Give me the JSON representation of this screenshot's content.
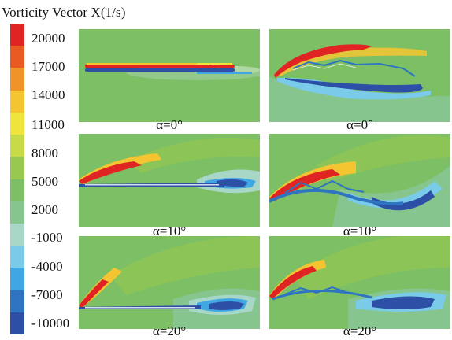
{
  "title": "Vorticity Vector X(1/s)",
  "colorbar": {
    "bands": [
      "#e02424",
      "#e85a22",
      "#f0942a",
      "#f4c531",
      "#efe43c",
      "#c6db47",
      "#98c84f",
      "#7cbf64",
      "#86c58e",
      "#a8d7c8",
      "#79cbe9",
      "#40a7e3",
      "#2f74c2",
      "#2d4fa6"
    ],
    "ticks": [
      "20000",
      "17000",
      "14000",
      "11000",
      "8000",
      "5000",
      "2000",
      "-1000",
      "-4000",
      "-7000",
      "-10000"
    ]
  },
  "panels": [
    {
      "id": "row1-left",
      "caption": "α=0°"
    },
    {
      "id": "row1-right",
      "caption": "α=0°"
    },
    {
      "id": "row2-left",
      "caption": "α=10°"
    },
    {
      "id": "row2-right",
      "caption": "α=10°"
    },
    {
      "id": "row3-left",
      "caption": "α=20°"
    },
    {
      "id": "row3-right",
      "caption": "α=20°"
    }
  ],
  "colors": {
    "background_field": "#7cbf64",
    "positive_vortex": "#e02424",
    "negative_vortex": "#2d4fa6"
  }
}
